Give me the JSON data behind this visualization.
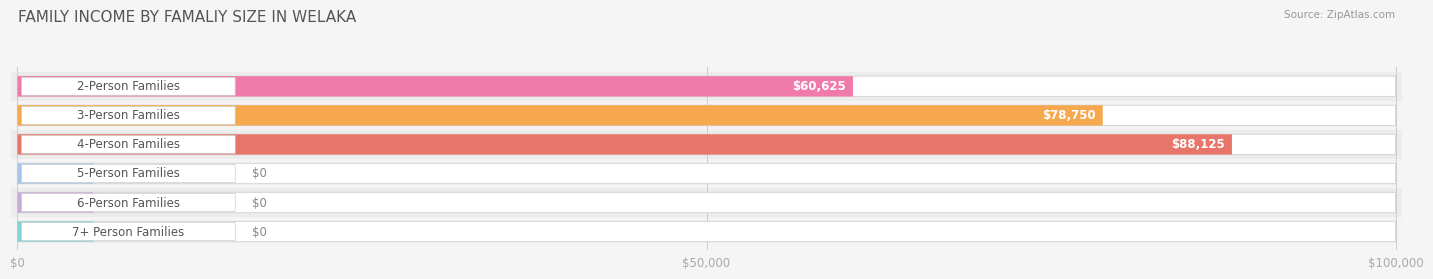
{
  "title": "FAMILY INCOME BY FAMALIY SIZE IN WELAKA",
  "source": "Source: ZipAtlas.com",
  "categories": [
    "2-Person Families",
    "3-Person Families",
    "4-Person Families",
    "5-Person Families",
    "6-Person Families",
    "7+ Person Families"
  ],
  "values": [
    60625,
    78750,
    88125,
    0,
    0,
    0
  ],
  "bar_colors": [
    "#f07aaa",
    "#f5a84e",
    "#e8756a",
    "#a8c4e8",
    "#c8aad8",
    "#82d4d4"
  ],
  "max_value": 100000,
  "x_ticks": [
    0,
    50000,
    100000
  ],
  "x_tick_labels": [
    "$0",
    "$50,000",
    "$100,000"
  ],
  "background_color": "#f0f0f0",
  "row_bg_colors": [
    "#f8f8f8",
    "#f0f0f0"
  ],
  "title_font_size": 11,
  "label_font_size": 8.5,
  "value_font_size": 8.5,
  "figsize": [
    14.06,
    3.05
  ]
}
